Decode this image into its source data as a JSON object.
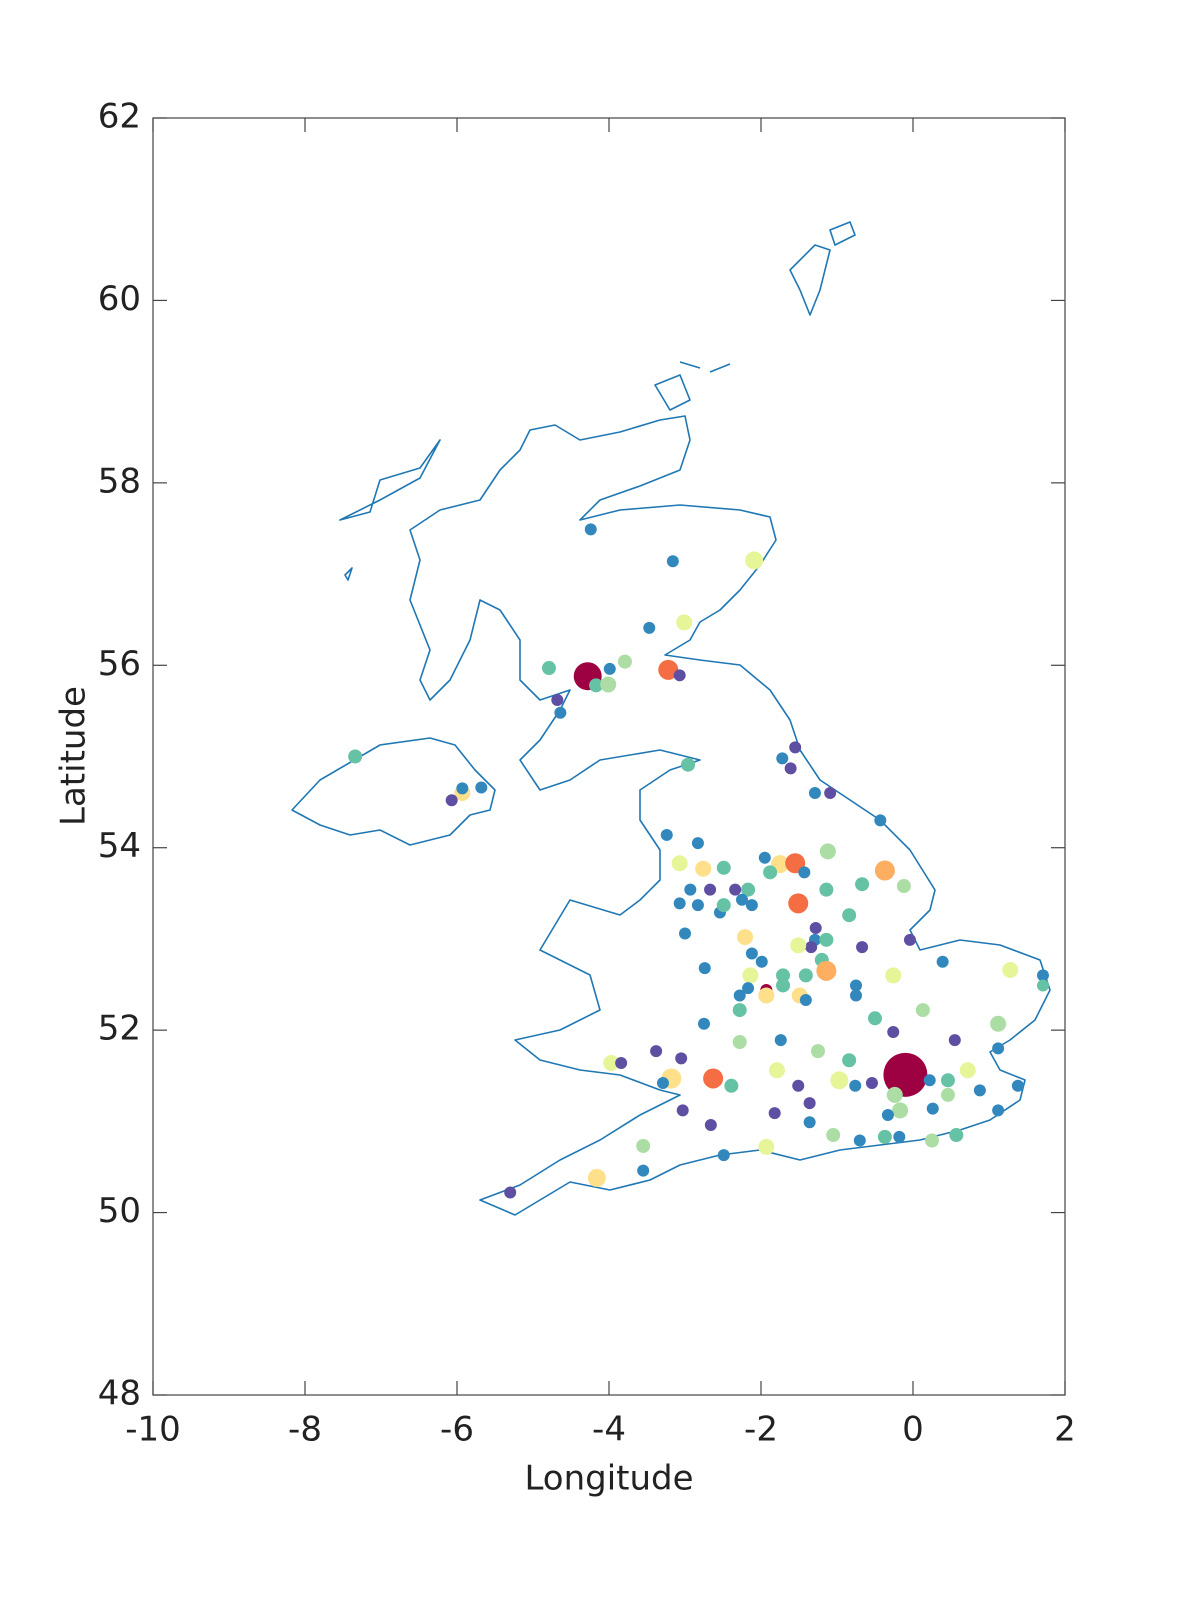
{
  "chart_data": {
    "type": "scatter",
    "xlabel": "Longitude",
    "ylabel": "Latitude",
    "xlim": [
      -10,
      2
    ],
    "ylim": [
      48,
      62
    ],
    "xticks": [
      -10,
      -8,
      -6,
      -4,
      -2,
      0,
      2
    ],
    "yticks": [
      48,
      50,
      52,
      54,
      56,
      58,
      60,
      62
    ],
    "x": [
      -4.24,
      -3.16,
      -2.09,
      -3.01,
      -3.47,
      -4.79,
      -4.28,
      -3.99,
      -3.79,
      -3.22,
      -3.07,
      -4.68,
      -4.64,
      -4.17,
      -4.01,
      -7.34,
      -5.93,
      -6.07,
      -5.93,
      -5.68,
      -1.55,
      -1.72,
      -1.61,
      -1.29,
      -1.09,
      -2.96,
      -0.43,
      -3.24,
      -2.83,
      -3.07,
      -2.76,
      -2.49,
      -1.95,
      -1.75,
      -1.55,
      -1.88,
      -1.43,
      -1.12,
      -0.67,
      -0.37,
      -0.12,
      -1.51,
      -1.14,
      -0.84,
      -2.93,
      -3.07,
      -2.67,
      -2.34,
      -2.17,
      -2.25,
      -2.12,
      -2.54,
      -2.83,
      -2.49,
      -1.28,
      -1.29,
      -1.14,
      -1.34,
      -0.67,
      -0.04,
      -3.0,
      -2.21,
      -2.12,
      -1.51,
      -1.2,
      -1.41,
      -1.99,
      -1.71,
      -2.14,
      -1.93,
      -1.93,
      -2.17,
      -2.28,
      -1.71,
      -1.49,
      -1.14,
      -0.75,
      -0.75,
      -1.41,
      -2.28,
      -2.74,
      -2.75,
      -0.26,
      0.39,
      1.28,
      1.71,
      1.71,
      0.13,
      -0.5,
      -0.26,
      0.55,
      1.12,
      1.12,
      -2.28,
      -1.74,
      -1.25,
      -0.84,
      -1.79,
      -3.97,
      -3.84,
      -3.38,
      -3.05,
      -3.18,
      -2.63,
      -2.39,
      -3.29,
      -0.97,
      -0.1,
      0.22,
      0.46,
      0.72,
      0.88,
      1.38,
      -0.54,
      -0.24,
      -0.17,
      -0.33,
      0.26,
      1.12,
      -3.03,
      -2.66,
      -1.82,
      -1.36,
      -1.05,
      -0.7,
      -0.37,
      -0.18,
      0.25,
      0.57,
      -1.93,
      -2.49,
      -3.55,
      -3.55,
      -4.16,
      -5.3,
      -0.76,
      0.46,
      -1.36,
      -1.51
    ],
    "y": [
      57.49,
      57.14,
      57.15,
      56.47,
      56.41,
      55.97,
      55.88,
      55.96,
      56.04,
      55.95,
      55.89,
      55.62,
      55.48,
      55.78,
      55.79,
      55.0,
      54.6,
      54.52,
      54.65,
      54.66,
      55.1,
      54.98,
      54.87,
      54.6,
      54.6,
      54.91,
      54.3,
      54.14,
      54.05,
      53.83,
      53.77,
      53.78,
      53.89,
      53.82,
      53.83,
      53.73,
      53.73,
      53.96,
      53.6,
      53.75,
      53.58,
      53.39,
      53.54,
      53.26,
      53.54,
      53.39,
      53.54,
      53.54,
      53.54,
      53.43,
      53.37,
      53.29,
      53.37,
      53.37,
      53.12,
      52.99,
      52.99,
      52.91,
      52.91,
      52.99,
      53.06,
      53.02,
      52.84,
      52.93,
      52.77,
      52.6,
      52.75,
      52.6,
      52.6,
      52.44,
      52.38,
      52.46,
      52.38,
      52.49,
      52.38,
      52.65,
      52.49,
      52.38,
      52.33,
      52.22,
      52.68,
      52.07,
      52.6,
      52.75,
      52.66,
      52.6,
      52.49,
      52.22,
      52.13,
      51.98,
      51.89,
      52.07,
      51.8,
      51.87,
      51.89,
      51.77,
      51.67,
      51.56,
      51.64,
      51.64,
      51.77,
      51.69,
      51.47,
      51.47,
      51.39,
      51.42,
      51.45,
      51.51,
      51.45,
      51.45,
      51.56,
      51.34,
      51.39,
      51.42,
      51.29,
      51.12,
      51.07,
      51.14,
      51.12,
      51.12,
      50.96,
      51.09,
      50.99,
      50.85,
      50.79,
      50.83,
      50.83,
      50.79,
      50.85,
      50.72,
      50.63,
      50.73,
      50.46,
      50.38,
      50.22,
      51.39,
      51.29,
      51.2,
      51.39
    ],
    "sizes": [
      6,
      6,
      9,
      8,
      6,
      7,
      14,
      6,
      7,
      10,
      6,
      6,
      6,
      7,
      8,
      7,
      8,
      6,
      6,
      6,
      6,
      6,
      6,
      6,
      6,
      7,
      6,
      6,
      6,
      8,
      8,
      7,
      6,
      9,
      10,
      7,
      6,
      8,
      7,
      10,
      7,
      10,
      7,
      7,
      6,
      6,
      6,
      6,
      7,
      6,
      6,
      6,
      6,
      7,
      6,
      6,
      7,
      6,
      6,
      6,
      6,
      8,
      6,
      8,
      7,
      7,
      6,
      7,
      8,
      6,
      8,
      6,
      6,
      7,
      8,
      10,
      6,
      6,
      6,
      7,
      6,
      6,
      8,
      6,
      8,
      6,
      6,
      7,
      7,
      6,
      6,
      8,
      6,
      7,
      6,
      7,
      7,
      8,
      8,
      6,
      6,
      6,
      10,
      10,
      7,
      6,
      9,
      22,
      6,
      7,
      8,
      6,
      6,
      6,
      8,
      8,
      6,
      6,
      6,
      6,
      6,
      6,
      6,
      7,
      6,
      7,
      6,
      7,
      7,
      8,
      6,
      7,
      6,
      9,
      6,
      6,
      7,
      6,
      6
    ],
    "colors": [
      "#3288bd",
      "#3288bd",
      "#e6f598",
      "#e6f598",
      "#3288bd",
      "#66c2a5",
      "#9e0142",
      "#3288bd",
      "#abdda4",
      "#f46d43",
      "#5e4fa2",
      "#5e4fa2",
      "#3288bd",
      "#66c2a5",
      "#abdda4",
      "#66c2a5",
      "#fee08b",
      "#5e4fa2",
      "#3288bd",
      "#3288bd",
      "#5e4fa2",
      "#3288bd",
      "#5e4fa2",
      "#3288bd",
      "#5e4fa2",
      "#66c2a5",
      "#3288bd",
      "#3288bd",
      "#3288bd",
      "#e6f598",
      "#fee08b",
      "#66c2a5",
      "#3288bd",
      "#fee08b",
      "#f46d43",
      "#66c2a5",
      "#3288bd",
      "#abdda4",
      "#66c2a5",
      "#fdae61",
      "#abdda4",
      "#f46d43",
      "#66c2a5",
      "#66c2a5",
      "#3288bd",
      "#3288bd",
      "#5e4fa2",
      "#5e4fa2",
      "#66c2a5",
      "#3288bd",
      "#3288bd",
      "#3288bd",
      "#3288bd",
      "#66c2a5",
      "#5e4fa2",
      "#3288bd",
      "#66c2a5",
      "#5e4fa2",
      "#5e4fa2",
      "#5e4fa2",
      "#3288bd",
      "#fee08b",
      "#3288bd",
      "#e6f598",
      "#66c2a5",
      "#66c2a5",
      "#3288bd",
      "#66c2a5",
      "#e6f598",
      "#9e0142",
      "#fee08b",
      "#3288bd",
      "#3288bd",
      "#66c2a5",
      "#fee08b",
      "#fdae61",
      "#3288bd",
      "#3288bd",
      "#3288bd",
      "#66c2a5",
      "#3288bd",
      "#3288bd",
      "#e6f598",
      "#3288bd",
      "#e6f598",
      "#3288bd",
      "#66c2a5",
      "#abdda4",
      "#66c2a5",
      "#5e4fa2",
      "#5e4fa2",
      "#abdda4",
      "#3288bd",
      "#abdda4",
      "#3288bd",
      "#abdda4",
      "#66c2a5",
      "#e6f598",
      "#e6f598",
      "#5e4fa2",
      "#5e4fa2",
      "#5e4fa2",
      "#fee08b",
      "#f46d43",
      "#66c2a5",
      "#3288bd",
      "#e6f598",
      "#9e0142",
      "#3288bd",
      "#66c2a5",
      "#e6f598",
      "#3288bd",
      "#3288bd",
      "#5e4fa2",
      "#abdda4",
      "#abdda4",
      "#3288bd",
      "#3288bd",
      "#3288bd",
      "#5e4fa2",
      "#5e4fa2",
      "#5e4fa2",
      "#3288bd",
      "#abdda4",
      "#3288bd",
      "#66c2a5",
      "#3288bd",
      "#abdda4",
      "#66c2a5",
      "#e6f598",
      "#3288bd",
      "#abdda4",
      "#3288bd",
      "#fee08b",
      "#5e4fa2",
      "#3288bd",
      "#abdda4",
      "#5e4fa2",
      "#5e4fa2"
    ]
  }
}
